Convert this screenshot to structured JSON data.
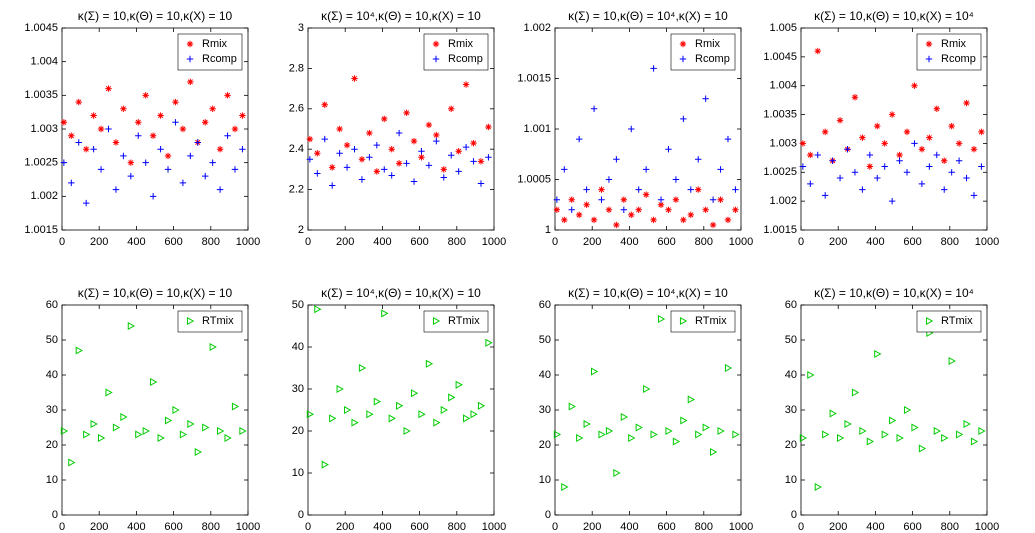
{
  "chart_data": [
    {
      "type": "scatter",
      "title": "κ(Σ) = 10,κ(Θ) = 10,κ(X) = 10",
      "x": [
        10,
        50,
        90,
        130,
        170,
        210,
        250,
        290,
        330,
        370,
        410,
        450,
        490,
        530,
        570,
        610,
        650,
        690,
        730,
        770,
        810,
        850,
        890,
        930,
        970
      ],
      "series": [
        {
          "name": "Rmix",
          "color": "#ff0000",
          "marker": "star",
          "values": [
            1.0031,
            1.0029,
            1.0034,
            1.0027,
            1.0032,
            1.003,
            1.0036,
            1.0028,
            1.0033,
            1.0025,
            1.0031,
            1.0035,
            1.0029,
            1.0032,
            1.0026,
            1.0034,
            1.003,
            1.0037,
            1.0028,
            1.0031,
            1.0033,
            1.0027,
            1.0035,
            1.003,
            1.0032
          ]
        },
        {
          "name": "Rcomp",
          "color": "#0000ff",
          "marker": "plus",
          "values": [
            1.0025,
            1.0022,
            1.0028,
            1.0019,
            1.0027,
            1.0024,
            1.003,
            1.0021,
            1.0026,
            1.0023,
            1.0029,
            1.0025,
            1.002,
            1.0027,
            1.0024,
            1.0031,
            1.0022,
            1.0026,
            1.0028,
            1.0023,
            1.0025,
            1.0021,
            1.0029,
            1.0024,
            1.0027
          ]
        }
      ],
      "xlim": [
        0,
        1000
      ],
      "xticks": [
        0,
        200,
        400,
        600,
        800,
        1000
      ],
      "ylim": [
        1.0015,
        1.0045
      ],
      "yticks": [
        1.0015,
        1.002,
        1.0025,
        1.003,
        1.0035,
        1.004,
        1.0045
      ],
      "legend": "upper right"
    },
    {
      "type": "scatter",
      "title": "κ(Σ) = 10⁴,κ(Θ) = 10,κ(X) = 10",
      "x": [
        10,
        50,
        90,
        130,
        170,
        210,
        250,
        290,
        330,
        370,
        410,
        450,
        490,
        530,
        570,
        610,
        650,
        690,
        730,
        770,
        810,
        850,
        890,
        930,
        970
      ],
      "series": [
        {
          "name": "Rmix",
          "color": "#ff0000",
          "marker": "star",
          "values": [
            2.45,
            2.38,
            2.62,
            2.31,
            2.5,
            2.42,
            2.75,
            2.35,
            2.48,
            2.29,
            2.55,
            2.4,
            2.33,
            2.58,
            2.44,
            2.36,
            2.52,
            2.47,
            2.3,
            2.6,
            2.39,
            2.72,
            2.43,
            2.34,
            2.51
          ]
        },
        {
          "name": "Rcomp",
          "color": "#0000ff",
          "marker": "plus",
          "values": [
            2.35,
            2.28,
            2.45,
            2.22,
            2.38,
            2.31,
            2.4,
            2.25,
            2.36,
            2.42,
            2.3,
            2.27,
            2.48,
            2.33,
            2.24,
            2.39,
            2.32,
            2.44,
            2.26,
            2.37,
            2.29,
            2.41,
            2.34,
            2.23,
            2.36
          ]
        }
      ],
      "xlim": [
        0,
        1000
      ],
      "xticks": [
        0,
        200,
        400,
        600,
        800,
        1000
      ],
      "ylim": [
        2,
        3
      ],
      "yticks": [
        2,
        2.2,
        2.4,
        2.6,
        2.8,
        3
      ],
      "legend": "upper right"
    },
    {
      "type": "scatter",
      "title": "κ(Σ) = 10,κ(Θ) = 10⁴,κ(X) = 10",
      "x": [
        10,
        50,
        90,
        130,
        170,
        210,
        250,
        290,
        330,
        370,
        410,
        450,
        490,
        530,
        570,
        610,
        650,
        690,
        730,
        770,
        810,
        850,
        890,
        930,
        970
      ],
      "series": [
        {
          "name": "Rmix",
          "color": "#ff0000",
          "marker": "star",
          "values": [
            1.0002,
            1.0001,
            1.0003,
            1.00015,
            1.00025,
            1.0001,
            1.0004,
            1.0002,
            1.00005,
            1.0003,
            1.00015,
            1.0002,
            1.00035,
            1.0001,
            1.00025,
            1.0002,
            1.0003,
            1.0001,
            1.00015,
            1.0004,
            1.0002,
            1.00005,
            1.0003,
            1.0001,
            1.0002
          ]
        },
        {
          "name": "Rcomp",
          "color": "#0000ff",
          "marker": "plus",
          "values": [
            1.0003,
            1.0006,
            1.0002,
            1.0009,
            1.0004,
            1.0012,
            1.0003,
            1.0005,
            1.0007,
            1.0002,
            1.001,
            1.0004,
            1.0006,
            1.0016,
            1.0003,
            1.0008,
            1.0005,
            1.0011,
            1.0004,
            1.0007,
            1.0013,
            1.0003,
            1.0006,
            1.0009,
            1.0004
          ]
        }
      ],
      "xlim": [
        0,
        1000
      ],
      "xticks": [
        0,
        200,
        400,
        600,
        800,
        1000
      ],
      "ylim": [
        1,
        1.002
      ],
      "yticks": [
        1,
        1.0005,
        1.001,
        1.0015,
        1.002
      ],
      "legend": "upper right"
    },
    {
      "type": "scatter",
      "title": "κ(Σ) = 10,κ(Θ) = 10,κ(X) = 10⁴",
      "x": [
        10,
        50,
        90,
        130,
        170,
        210,
        250,
        290,
        330,
        370,
        410,
        450,
        490,
        530,
        570,
        610,
        650,
        690,
        730,
        770,
        810,
        850,
        890,
        930,
        970
      ],
      "series": [
        {
          "name": "Rmix",
          "color": "#ff0000",
          "marker": "star",
          "values": [
            1.003,
            1.0028,
            1.0046,
            1.0032,
            1.0027,
            1.0034,
            1.0029,
            1.0038,
            1.0031,
            1.0026,
            1.0033,
            1.003,
            1.0035,
            1.0028,
            1.0032,
            1.004,
            1.0029,
            1.0031,
            1.0036,
            1.0027,
            1.0033,
            1.003,
            1.0037,
            1.0029,
            1.0032
          ]
        },
        {
          "name": "Rcomp",
          "color": "#0000ff",
          "marker": "plus",
          "values": [
            1.0026,
            1.0023,
            1.0028,
            1.0021,
            1.0027,
            1.0024,
            1.0029,
            1.0025,
            1.0022,
            1.0028,
            1.0024,
            1.0026,
            1.002,
            1.0027,
            1.0025,
            1.003,
            1.0023,
            1.0026,
            1.0028,
            1.0022,
            1.0025,
            1.0027,
            1.0024,
            1.0021,
            1.0026
          ]
        }
      ],
      "xlim": [
        0,
        1000
      ],
      "xticks": [
        0,
        200,
        400,
        600,
        800,
        1000
      ],
      "ylim": [
        1.0015,
        1.005
      ],
      "yticks": [
        1.0015,
        1.002,
        1.0025,
        1.003,
        1.0035,
        1.004,
        1.0045,
        1.005
      ],
      "legend": "upper right"
    },
    {
      "type": "scatter",
      "title": "κ(Σ) = 10,κ(Θ) = 10,κ(X) = 10",
      "x": [
        10,
        50,
        90,
        130,
        170,
        210,
        250,
        290,
        330,
        370,
        410,
        450,
        490,
        530,
        570,
        610,
        650,
        690,
        730,
        770,
        810,
        850,
        890,
        930,
        970
      ],
      "series": [
        {
          "name": "RTmix",
          "color": "#00cc00",
          "marker": "triangle-right",
          "values": [
            24,
            15,
            47,
            23,
            26,
            22,
            35,
            25,
            28,
            54,
            23,
            24,
            38,
            22,
            27,
            30,
            23,
            26,
            18,
            25,
            48,
            24,
            22,
            31,
            24
          ]
        }
      ],
      "xlim": [
        0,
        1000
      ],
      "xticks": [
        0,
        200,
        400,
        600,
        800,
        1000
      ],
      "ylim": [
        0,
        60
      ],
      "yticks": [
        0,
        10,
        20,
        30,
        40,
        50,
        60
      ],
      "legend": "upper right"
    },
    {
      "type": "scatter",
      "title": "κ(Σ) = 10⁴,κ(Θ) = 10,κ(X) = 10",
      "x": [
        10,
        50,
        90,
        130,
        170,
        210,
        250,
        290,
        330,
        370,
        410,
        450,
        490,
        530,
        570,
        610,
        650,
        690,
        730,
        770,
        810,
        850,
        890,
        930,
        970
      ],
      "series": [
        {
          "name": "RTmix",
          "color": "#00cc00",
          "marker": "triangle-right",
          "values": [
            24,
            49,
            12,
            23,
            30,
            25,
            22,
            35,
            24,
            27,
            48,
            23,
            26,
            20,
            29,
            24,
            36,
            22,
            25,
            28,
            31,
            23,
            24,
            26,
            41
          ]
        }
      ],
      "xlim": [
        0,
        1000
      ],
      "xticks": [
        0,
        200,
        400,
        600,
        800,
        1000
      ],
      "ylim": [
        0,
        50
      ],
      "yticks": [
        0,
        10,
        20,
        30,
        40,
        50
      ],
      "legend": "upper right"
    },
    {
      "type": "scatter",
      "title": "κ(Σ) = 10,κ(Θ) = 10⁴,κ(X) = 10",
      "x": [
        10,
        50,
        90,
        130,
        170,
        210,
        250,
        290,
        330,
        370,
        410,
        450,
        490,
        530,
        570,
        610,
        650,
        690,
        730,
        770,
        810,
        850,
        890,
        930,
        970
      ],
      "series": [
        {
          "name": "RTmix",
          "color": "#00cc00",
          "marker": "triangle-right",
          "values": [
            23,
            8,
            31,
            22,
            26,
            41,
            23,
            24,
            12,
            28,
            22,
            25,
            36,
            23,
            56,
            24,
            21,
            27,
            33,
            23,
            25,
            18,
            24,
            42,
            23
          ]
        }
      ],
      "xlim": [
        0,
        1000
      ],
      "xticks": [
        0,
        200,
        400,
        600,
        800,
        1000
      ],
      "ylim": [
        0,
        60
      ],
      "yticks": [
        0,
        10,
        20,
        30,
        40,
        50,
        60
      ],
      "legend": "upper right"
    },
    {
      "type": "scatter",
      "title": "κ(Σ) = 10,κ(Θ) = 10,κ(X) = 10⁴",
      "x": [
        10,
        50,
        90,
        130,
        170,
        210,
        250,
        290,
        330,
        370,
        410,
        450,
        490,
        530,
        570,
        610,
        650,
        690,
        730,
        770,
        810,
        850,
        890,
        930,
        970
      ],
      "series": [
        {
          "name": "RTmix",
          "color": "#00cc00",
          "marker": "triangle-right",
          "values": [
            22,
            40,
            8,
            23,
            29,
            22,
            26,
            35,
            24,
            21,
            46,
            23,
            27,
            22,
            30,
            25,
            19,
            52,
            24,
            22,
            44,
            23,
            26,
            21,
            24
          ]
        }
      ],
      "xlim": [
        0,
        1000
      ],
      "xticks": [
        0,
        200,
        400,
        600,
        800,
        1000
      ],
      "ylim": [
        0,
        60
      ],
      "yticks": [
        0,
        10,
        20,
        30,
        40,
        50,
        60
      ],
      "legend": "upper right"
    }
  ]
}
